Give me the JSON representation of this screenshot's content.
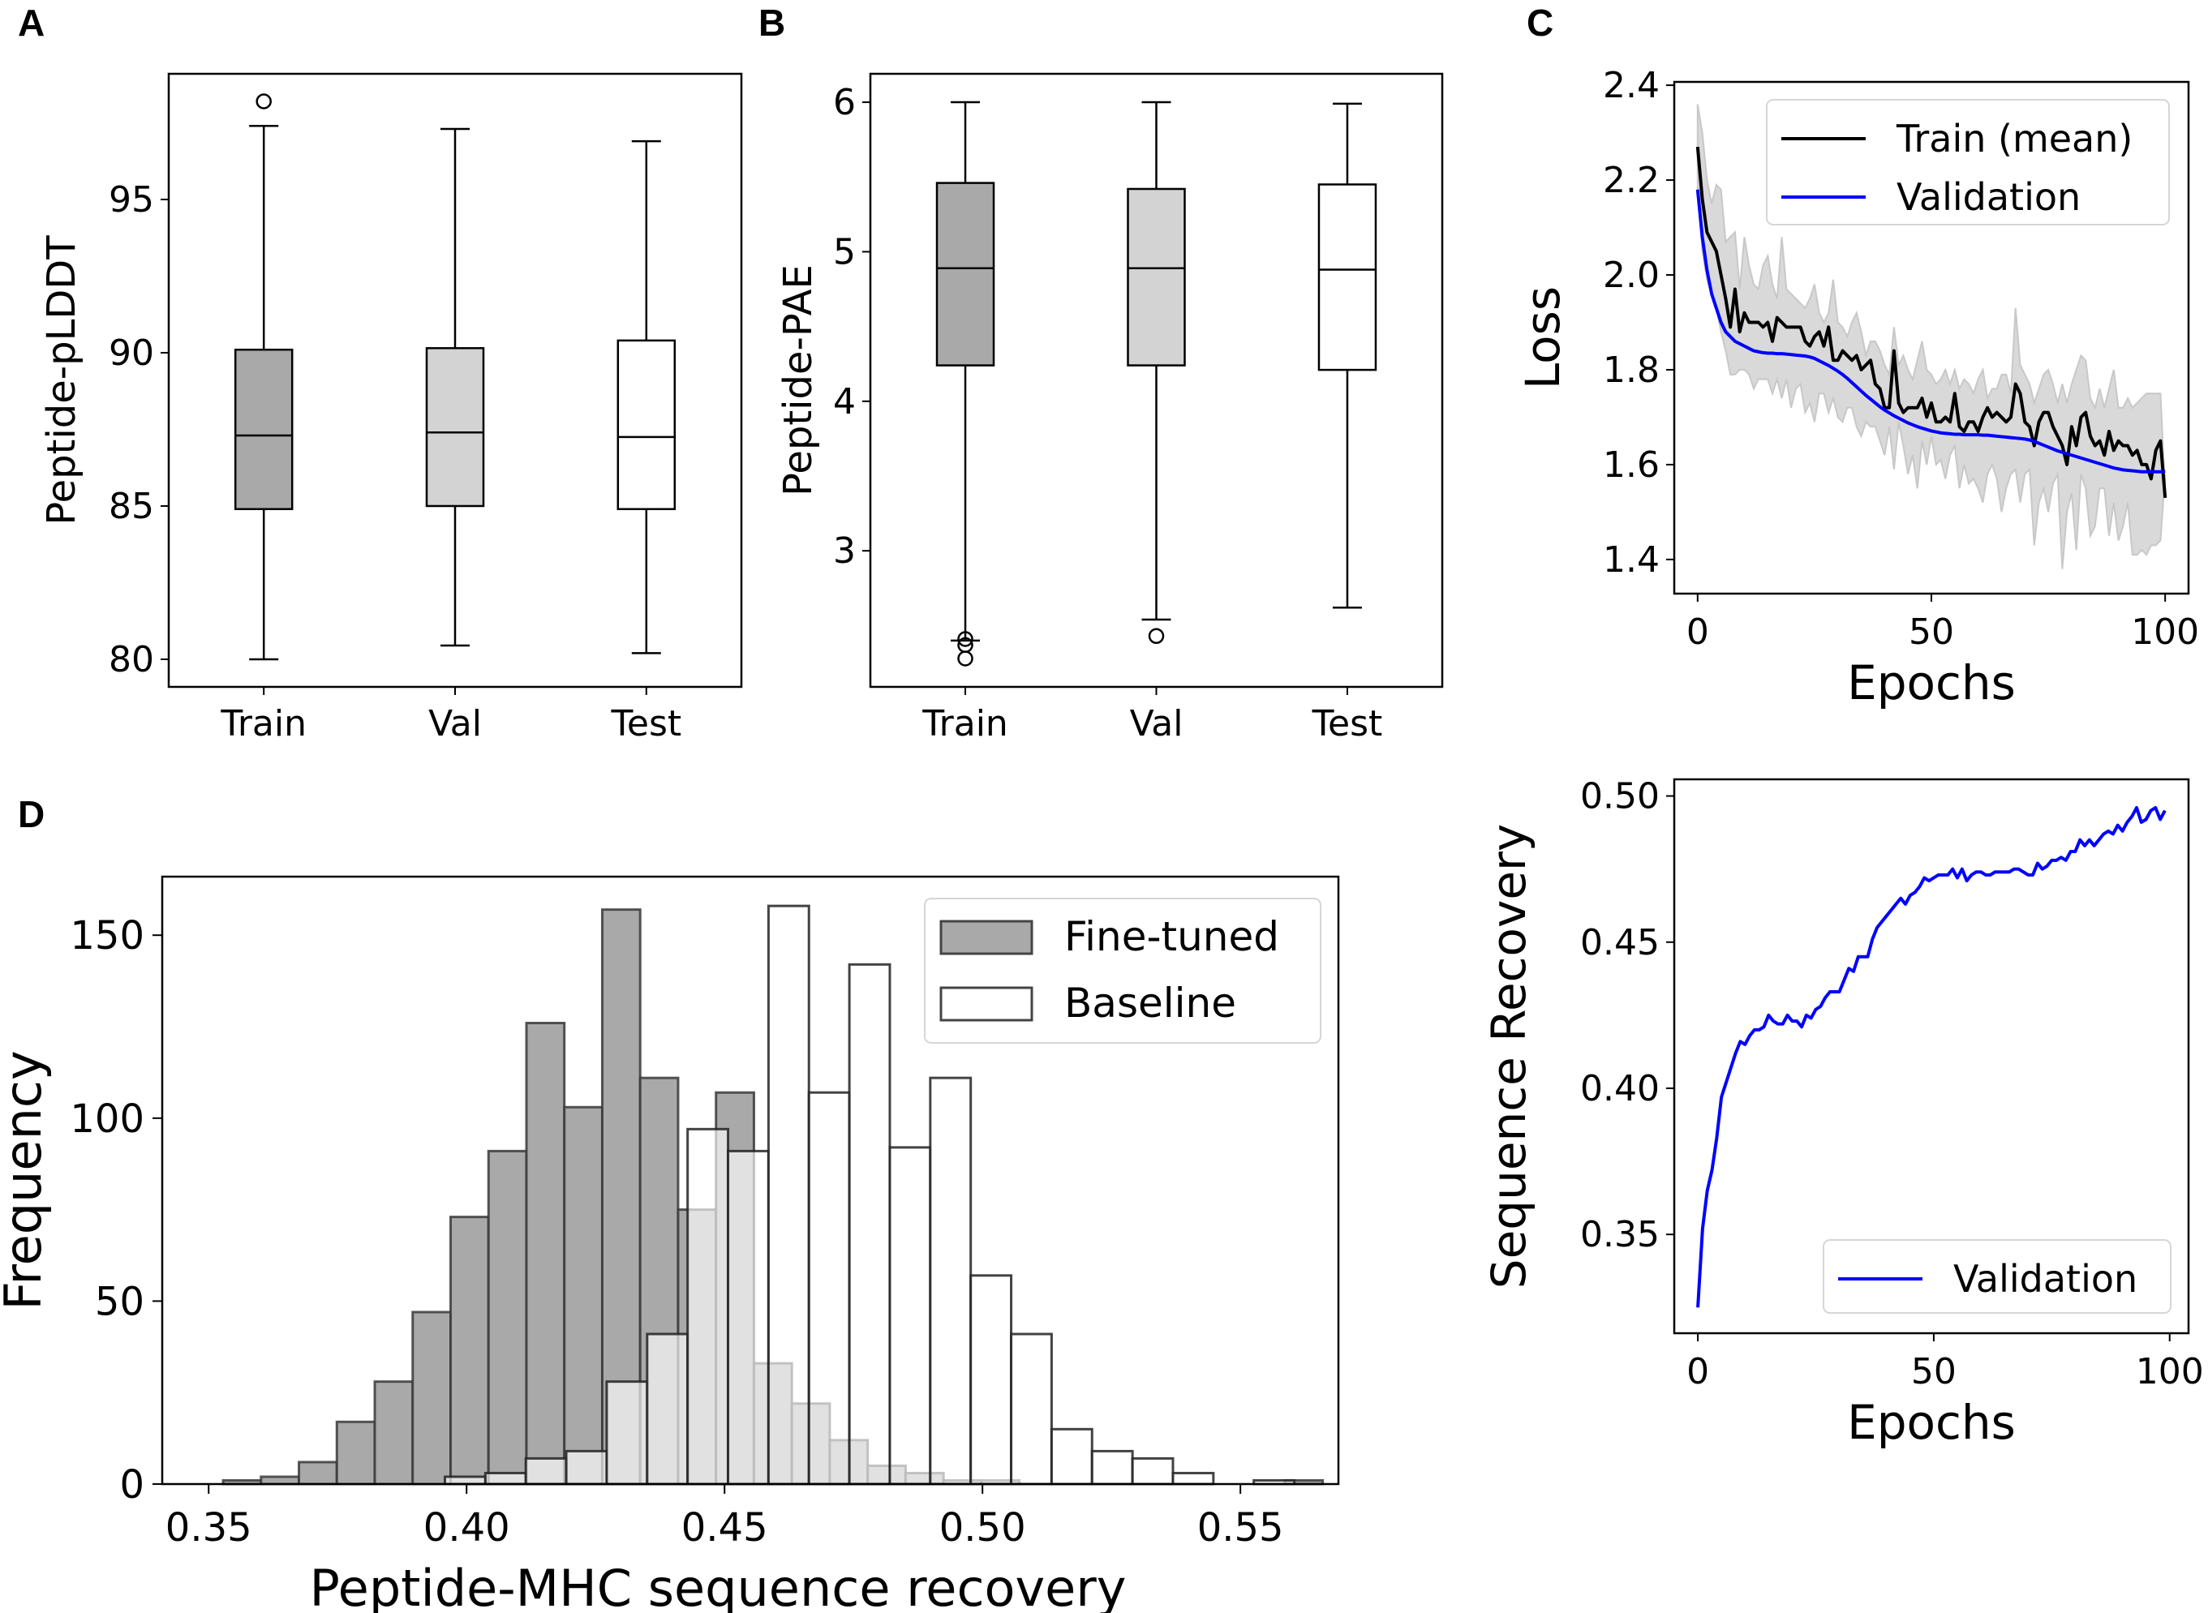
{
  "panels": {
    "A": {
      "letter": "A"
    },
    "B": {
      "letter": "B"
    },
    "C": {
      "letter": "C"
    },
    "D": {
      "letter": "D"
    }
  },
  "chart_data": [
    {
      "id": "A",
      "type": "box",
      "title": "",
      "xlabel": "",
      "ylabel": "Peptide-pLDDT",
      "ylim": [
        79.1,
        99.1
      ],
      "yticks": [
        80,
        85,
        90,
        95
      ],
      "categories": [
        "Train",
        "Val",
        "Test"
      ],
      "fills": [
        "#a9a9a9",
        "#d3d3d3",
        "#ffffff"
      ],
      "boxes": [
        {
          "whislo": 80.0,
          "q1": 84.9,
          "med": 87.3,
          "q3": 90.1,
          "whishi": 97.4,
          "fliers": [
            98.2
          ]
        },
        {
          "whislo": 80.45,
          "q1": 85.0,
          "med": 87.4,
          "q3": 90.15,
          "whishi": 97.3,
          "fliers": []
        },
        {
          "whislo": 80.2,
          "q1": 84.9,
          "med": 87.25,
          "q3": 90.4,
          "whishi": 96.9,
          "fliers": []
        }
      ]
    },
    {
      "id": "B",
      "type": "box",
      "title": "",
      "xlabel": "",
      "ylabel": "Peptide-PAE",
      "ylim": [
        2.09,
        6.19
      ],
      "yticks": [
        3,
        4,
        5,
        6
      ],
      "categories": [
        "Train",
        "Val",
        "Test"
      ],
      "fills": [
        "#a9a9a9",
        "#d3d3d3",
        "#ffffff"
      ],
      "boxes": [
        {
          "whislo": 2.4,
          "q1": 4.24,
          "med": 4.89,
          "q3": 5.46,
          "whishi": 6.0,
          "fliers": [
            2.41,
            2.37,
            2.28
          ]
        },
        {
          "whislo": 2.54,
          "q1": 4.24,
          "med": 4.89,
          "q3": 5.42,
          "whishi": 6.0,
          "fliers": [
            2.43
          ]
        },
        {
          "whislo": 2.62,
          "q1": 4.21,
          "med": 4.88,
          "q3": 5.45,
          "whishi": 5.99,
          "fliers": []
        }
      ]
    },
    {
      "id": "C",
      "type": "line",
      "title": "",
      "xlabel": "Epochs",
      "ylabel": "Loss",
      "xlim": [
        -5,
        105
      ],
      "ylim": [
        1.328,
        2.407
      ],
      "xticks": [
        0,
        50,
        100
      ],
      "yticks": [
        1.4,
        1.6,
        1.8,
        2.0,
        2.2,
        2.4
      ],
      "ytick_labels": [
        "1.4",
        "1.6",
        "1.8",
        "2.0",
        "2.2",
        "2.4"
      ],
      "legend": {
        "position": "top-right",
        "entries": [
          "Train (mean)",
          "Validation"
        ]
      },
      "series": [
        {
          "name": "Train (mean)",
          "color": "#000000",
          "values": [
            2.27,
            2.16,
            2.09,
            2.07,
            2.05,
            2.0,
            1.95,
            1.89,
            1.97,
            1.88,
            1.92,
            1.9,
            1.9,
            1.9,
            1.89,
            1.9,
            1.86,
            1.91,
            1.9,
            1.89,
            1.89,
            1.89,
            1.89,
            1.86,
            1.85,
            1.87,
            1.88,
            1.85,
            1.89,
            1.82,
            1.82,
            1.84,
            1.83,
            1.82,
            1.83,
            1.8,
            1.81,
            1.82,
            1.77,
            1.76,
            1.72,
            1.72,
            1.84,
            1.73,
            1.71,
            1.72,
            1.72,
            1.72,
            1.74,
            1.7,
            1.73,
            1.69,
            1.69,
            1.7,
            1.69,
            1.75,
            1.68,
            1.67,
            1.69,
            1.69,
            1.67,
            1.7,
            1.72,
            1.7,
            1.71,
            1.7,
            1.69,
            1.7,
            1.77,
            1.75,
            1.69,
            1.68,
            1.64,
            1.69,
            1.71,
            1.71,
            1.68,
            1.66,
            1.64,
            1.6,
            1.68,
            1.64,
            1.7,
            1.71,
            1.66,
            1.64,
            1.65,
            1.62,
            1.67,
            1.63,
            1.65,
            1.64,
            1.64,
            1.62,
            1.63,
            1.6,
            1.6,
            1.57,
            1.63,
            1.65,
            1.53
          ]
        },
        {
          "name": "Validation",
          "color": "#0000ff",
          "values": [
            2.18,
            2.08,
            2.01,
            1.96,
            1.93,
            1.9,
            1.88,
            1.87,
            1.86,
            1.855,
            1.85,
            1.845,
            1.84,
            1.838,
            1.836,
            1.835,
            1.835,
            1.834,
            1.834,
            1.833,
            1.832,
            1.831,
            1.83,
            1.829,
            1.827,
            1.824,
            1.819,
            1.814,
            1.809,
            1.803,
            1.797,
            1.79,
            1.782,
            1.773,
            1.764,
            1.755,
            1.746,
            1.738,
            1.73,
            1.722,
            1.715,
            1.709,
            1.703,
            1.698,
            1.693,
            1.688,
            1.684,
            1.68,
            1.677,
            1.674,
            1.671,
            1.669,
            1.667,
            1.666,
            1.665,
            1.664,
            1.664,
            1.663,
            1.663,
            1.663,
            1.663,
            1.662,
            1.662,
            1.661,
            1.66,
            1.659,
            1.658,
            1.657,
            1.656,
            1.655,
            1.654,
            1.652,
            1.649,
            1.645,
            1.641,
            1.637,
            1.633,
            1.629,
            1.626,
            1.623,
            1.62,
            1.617,
            1.614,
            1.611,
            1.608,
            1.605,
            1.602,
            1.599,
            1.596,
            1.593,
            1.591,
            1.589,
            1.588,
            1.587,
            1.586,
            1.585,
            1.585,
            1.585,
            1.585,
            1.585,
            1.586
          ]
        },
        {
          "name": "Train band (range)",
          "color": "#d9d9d9",
          "upper": [
            2.36,
            2.3,
            2.2,
            2.15,
            2.19,
            2.18,
            2.07,
            2.08,
            2.09,
            1.97,
            2.08,
            2.02,
            1.98,
            1.97,
            2.02,
            2.04,
            1.98,
            1.95,
            2.08,
            1.97,
            1.96,
            1.95,
            1.94,
            1.93,
            1.95,
            1.98,
            1.92,
            1.9,
            1.92,
            1.99,
            1.9,
            1.89,
            1.87,
            1.9,
            1.92,
            1.88,
            1.83,
            1.86,
            1.86,
            1.84,
            1.81,
            1.79,
            1.89,
            1.81,
            1.83,
            1.8,
            1.78,
            1.82,
            1.86,
            1.8,
            1.79,
            1.77,
            1.78,
            1.8,
            1.77,
            1.8,
            1.76,
            1.78,
            1.77,
            1.75,
            1.78,
            1.8,
            1.74,
            1.76,
            1.76,
            1.79,
            1.79,
            1.75,
            1.93,
            1.81,
            1.79,
            1.77,
            1.73,
            1.76,
            1.79,
            1.8,
            1.77,
            1.73,
            1.77,
            1.73,
            1.77,
            1.8,
            1.83,
            1.82,
            1.74,
            1.72,
            1.76,
            1.72,
            1.76,
            1.8,
            1.72,
            1.72,
            1.74,
            1.72,
            1.73,
            1.74,
            1.75,
            1.75,
            1.75,
            1.75,
            1.54
          ],
          "lower": [
            2.18,
            2.05,
            1.99,
            1.96,
            1.93,
            1.88,
            1.84,
            1.79,
            1.79,
            1.8,
            1.8,
            1.79,
            1.76,
            1.78,
            1.78,
            1.78,
            1.75,
            1.78,
            1.74,
            1.78,
            1.72,
            1.76,
            1.77,
            1.71,
            1.73,
            1.69,
            1.75,
            1.75,
            1.71,
            1.74,
            1.7,
            1.69,
            1.72,
            1.72,
            1.68,
            1.66,
            1.69,
            1.68,
            1.68,
            1.65,
            1.62,
            1.68,
            1.59,
            1.69,
            1.64,
            1.58,
            1.62,
            1.55,
            1.65,
            1.6,
            1.66,
            1.6,
            1.61,
            1.57,
            1.62,
            1.64,
            1.55,
            1.6,
            1.56,
            1.57,
            1.55,
            1.52,
            1.58,
            1.6,
            1.57,
            1.5,
            1.55,
            1.58,
            1.59,
            1.52,
            1.58,
            1.59,
            1.43,
            1.52,
            1.55,
            1.5,
            1.56,
            1.58,
            1.38,
            1.5,
            1.54,
            1.42,
            1.58,
            1.55,
            1.45,
            1.47,
            1.55,
            1.55,
            1.45,
            1.52,
            1.44,
            1.47,
            1.52,
            1.41,
            1.41,
            1.42,
            1.41,
            1.43,
            1.43,
            1.44,
            1.58
          ]
        }
      ]
    },
    {
      "id": "E",
      "type": "line",
      "title": "",
      "xlabel": "Epochs",
      "ylabel": "Sequence Recovery",
      "xlim": [
        -5,
        104
      ],
      "ylim": [
        0.3162,
        0.5057
      ],
      "xticks": [
        0,
        50,
        100
      ],
      "yticks": [
        0.35,
        0.4,
        0.45,
        0.5
      ],
      "ytick_labels": [
        "0.35",
        "0.40",
        "0.45",
        "0.50"
      ],
      "legend": {
        "position": "bottom-right",
        "entries": [
          "Validation"
        ]
      },
      "series": [
        {
          "name": "Validation",
          "color": "#0000ff",
          "values": [
            0.325,
            0.352,
            0.365,
            0.372,
            0.383,
            0.397,
            0.402,
            0.407,
            0.412,
            0.416,
            0.415,
            0.418,
            0.42,
            0.42,
            0.421,
            0.425,
            0.423,
            0.422,
            0.422,
            0.425,
            0.423,
            0.423,
            0.421,
            0.425,
            0.424,
            0.427,
            0.428,
            0.431,
            0.433,
            0.433,
            0.433,
            0.437,
            0.441,
            0.44,
            0.445,
            0.445,
            0.445,
            0.451,
            0.455,
            0.457,
            0.459,
            0.461,
            0.463,
            0.465,
            0.463,
            0.466,
            0.467,
            0.469,
            0.472,
            0.471,
            0.472,
            0.473,
            0.473,
            0.473,
            0.475,
            0.472,
            0.475,
            0.471,
            0.473,
            0.474,
            0.474,
            0.473,
            0.473,
            0.474,
            0.474,
            0.474,
            0.474,
            0.475,
            0.475,
            0.474,
            0.473,
            0.473,
            0.477,
            0.475,
            0.476,
            0.478,
            0.478,
            0.479,
            0.478,
            0.481,
            0.481,
            0.485,
            0.483,
            0.485,
            0.483,
            0.485,
            0.487,
            0.488,
            0.487,
            0.49,
            0.488,
            0.491,
            0.493,
            0.496,
            0.491,
            0.492,
            0.495,
            0.496,
            0.492,
            0.495
          ]
        }
      ]
    },
    {
      "id": "D",
      "type": "histogram",
      "title": "",
      "xlabel": "Peptide-MHC sequence recovery",
      "ylabel": "Frequency",
      "xlim": [
        0.341,
        0.569
      ],
      "ylim": [
        0,
        166
      ],
      "xticks": [
        0.35,
        0.4,
        0.45,
        0.5,
        0.55
      ],
      "xtick_labels": [
        "0.35",
        "0.40",
        "0.45",
        "0.50",
        "0.55"
      ],
      "yticks": [
        0,
        50,
        100,
        150
      ],
      "legend": {
        "position": "top-right",
        "entries": [
          "Fine-tuned",
          "Baseline"
        ]
      },
      "series": [
        {
          "name": "Fine-tuned",
          "color": "#a9a9a9",
          "bin_start": 0.3528,
          "bin_width": 0.00735,
          "counts": [
            1,
            2,
            6,
            17,
            28,
            47,
            73,
            91,
            126,
            103,
            157,
            111,
            75,
            107,
            33,
            22,
            12,
            5,
            3,
            1,
            1,
            0,
            0,
            0,
            0,
            0,
            0,
            0,
            1
          ]
        },
        {
          "name": "Baseline",
          "color": "#ffffff",
          "bin_start": 0.3958,
          "bin_width": 0.00784,
          "counts": [
            2,
            3,
            7,
            9,
            28,
            41,
            97,
            91,
            158,
            107,
            142,
            92,
            111,
            57,
            41,
            15,
            9,
            7,
            3,
            0,
            1
          ]
        }
      ]
    }
  ]
}
